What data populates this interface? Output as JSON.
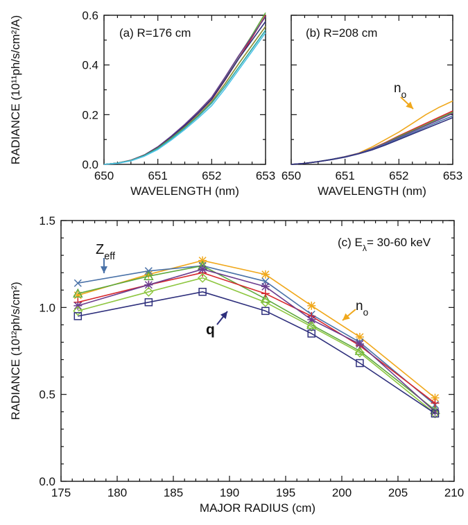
{
  "colors": {
    "axis": "#111111",
    "orange": "#F0A81C",
    "blue": "#4A72A8",
    "navy": "#2E2F7C",
    "red": "#D7262B",
    "green": "#5DA83C",
    "lightgreen": "#8DC63F",
    "purple": "#6B3C8E",
    "teal": "#2BA6A0",
    "cyan": "#4FC3E8",
    "olive": "#8A8B2E"
  },
  "chart_data": [
    {
      "id": "a",
      "type": "line",
      "annotation": "(a) R=176 cm",
      "xlabel": "WAVELENGTH (nm)",
      "ylabel": "RADIANCE (10¹¹ph/s/cm²/A)",
      "xlim": [
        650,
        653
      ],
      "ylim": [
        0,
        0.6
      ],
      "xticks": [
        "650",
        "651",
        "652",
        "653"
      ],
      "yticks": [
        "0.0",
        "0.2",
        "0.4",
        "0.6"
      ],
      "x": [
        650.0,
        650.25,
        650.5,
        650.75,
        651.0,
        651.25,
        651.5,
        651.75,
        652.0,
        652.25,
        652.5,
        652.75,
        653.0
      ],
      "series": [
        {
          "color": "#D7262B",
          "values": [
            0.0,
            0.005,
            0.016,
            0.037,
            0.068,
            0.11,
            0.155,
            0.205,
            0.26,
            0.34,
            0.425,
            0.51,
            0.6
          ]
        },
        {
          "color": "#5DA83C",
          "values": [
            0.0,
            0.005,
            0.016,
            0.038,
            0.07,
            0.113,
            0.16,
            0.212,
            0.268,
            0.35,
            0.435,
            0.52,
            0.61
          ]
        },
        {
          "color": "#6B3C8E",
          "values": [
            0.0,
            0.005,
            0.017,
            0.038,
            0.071,
            0.114,
            0.161,
            0.213,
            0.27,
            0.352,
            0.437,
            0.515,
            0.595
          ]
        },
        {
          "color": "#2E2F7C",
          "values": [
            0.0,
            0.005,
            0.016,
            0.037,
            0.068,
            0.11,
            0.156,
            0.206,
            0.262,
            0.342,
            0.425,
            0.5,
            0.575
          ]
        },
        {
          "color": "#8A8B2E",
          "values": [
            0.0,
            0.005,
            0.016,
            0.036,
            0.066,
            0.106,
            0.15,
            0.198,
            0.252,
            0.325,
            0.405,
            0.48,
            0.555
          ]
        },
        {
          "color": "#2BA6A0",
          "values": [
            0.0,
            0.005,
            0.015,
            0.035,
            0.064,
            0.103,
            0.146,
            0.193,
            0.246,
            0.315,
            0.39,
            0.465,
            0.54
          ]
        },
        {
          "color": "#4FC3E8",
          "values": [
            0.0,
            0.004,
            0.014,
            0.033,
            0.06,
            0.098,
            0.14,
            0.186,
            0.236,
            0.305,
            0.38,
            0.455,
            0.53
          ]
        }
      ]
    },
    {
      "id": "b",
      "type": "line",
      "annotation": "(b) R=208 cm",
      "callout": "n",
      "callout_sub": "o",
      "xlabel": "WAVELENGTH (nm)",
      "xlim": [
        650,
        653
      ],
      "ylim": [
        0,
        0.6
      ],
      "xticks": [
        "650",
        "651",
        "652",
        "653"
      ],
      "x": [
        650.0,
        650.25,
        650.5,
        650.75,
        651.0,
        651.25,
        651.5,
        651.75,
        652.0,
        652.25,
        652.5,
        652.75,
        653.0
      ],
      "series": [
        {
          "color": "#F0A81C",
          "values": [
            0.0,
            0.004,
            0.011,
            0.02,
            0.031,
            0.045,
            0.07,
            0.1,
            0.13,
            0.165,
            0.2,
            0.23,
            0.255
          ]
        },
        {
          "color": "#D7262B",
          "values": [
            0.0,
            0.004,
            0.011,
            0.02,
            0.031,
            0.044,
            0.064,
            0.088,
            0.115,
            0.14,
            0.165,
            0.19,
            0.215
          ]
        },
        {
          "color": "#5DA83C",
          "values": [
            0.0,
            0.004,
            0.011,
            0.02,
            0.031,
            0.044,
            0.063,
            0.086,
            0.112,
            0.136,
            0.16,
            0.185,
            0.21
          ]
        },
        {
          "color": "#6B3C8E",
          "values": [
            0.0,
            0.004,
            0.011,
            0.02,
            0.031,
            0.044,
            0.062,
            0.084,
            0.108,
            0.132,
            0.156,
            0.18,
            0.205
          ]
        },
        {
          "color": "#4A72A8",
          "values": [
            0.0,
            0.004,
            0.011,
            0.02,
            0.03,
            0.043,
            0.06,
            0.081,
            0.104,
            0.127,
            0.15,
            0.173,
            0.195
          ]
        },
        {
          "color": "#2E2F7C",
          "values": [
            0.0,
            0.004,
            0.011,
            0.019,
            0.029,
            0.042,
            0.058,
            0.078,
            0.1,
            0.122,
            0.144,
            0.166,
            0.188
          ]
        }
      ]
    },
    {
      "id": "c",
      "type": "line",
      "annotation": "(c) E",
      "annotation_sub": "λ",
      "annotation_tail": "= 30-60 keV",
      "xlabel": "MAJOR RADIUS (cm)",
      "ylabel": "RADIANCE (10¹²ph/s/cm²)",
      "xlim": [
        175,
        210
      ],
      "ylim": [
        0,
        1.5
      ],
      "xticks": [
        "175",
        "180",
        "185",
        "190",
        "195",
        "200",
        "205",
        "210"
      ],
      "yticks": [
        "0.0",
        "0.5",
        "1.0",
        "1.5"
      ],
      "labels": {
        "zeff": "Z",
        "zeff_sub": "eff",
        "q": "q",
        "no": "n",
        "no_sub": "o"
      },
      "x": [
        176.5,
        182.8,
        187.6,
        193.2,
        197.3,
        201.6,
        208.3
      ],
      "series": [
        {
          "color": "#F0A81C",
          "marker": "asterisk",
          "values": [
            1.07,
            1.19,
            1.27,
            1.19,
            1.01,
            0.83,
            0.48
          ]
        },
        {
          "color": "#4A72A8",
          "marker": "x",
          "values": [
            1.14,
            1.21,
            1.24,
            1.15,
            0.96,
            0.8,
            0.44
          ]
        },
        {
          "color": "#5DA83C",
          "marker": "triangle",
          "values": [
            1.08,
            1.18,
            1.24,
            1.05,
            0.9,
            0.75,
            0.41
          ]
        },
        {
          "color": "#D7262B",
          "marker": "plus",
          "values": [
            1.03,
            1.13,
            1.2,
            1.08,
            0.95,
            0.78,
            0.45
          ]
        },
        {
          "color": "#6B3C8E",
          "marker": "asterisk",
          "values": [
            1.01,
            1.13,
            1.22,
            1.12,
            0.93,
            0.79,
            0.4
          ]
        },
        {
          "color": "#8DC63F",
          "marker": "diamond",
          "values": [
            0.98,
            1.09,
            1.17,
            1.03,
            0.89,
            0.74,
            0.39
          ]
        },
        {
          "color": "#2E2F7C",
          "marker": "square",
          "values": [
            0.95,
            1.03,
            1.09,
            0.98,
            0.85,
            0.68,
            0.39
          ]
        }
      ]
    }
  ]
}
